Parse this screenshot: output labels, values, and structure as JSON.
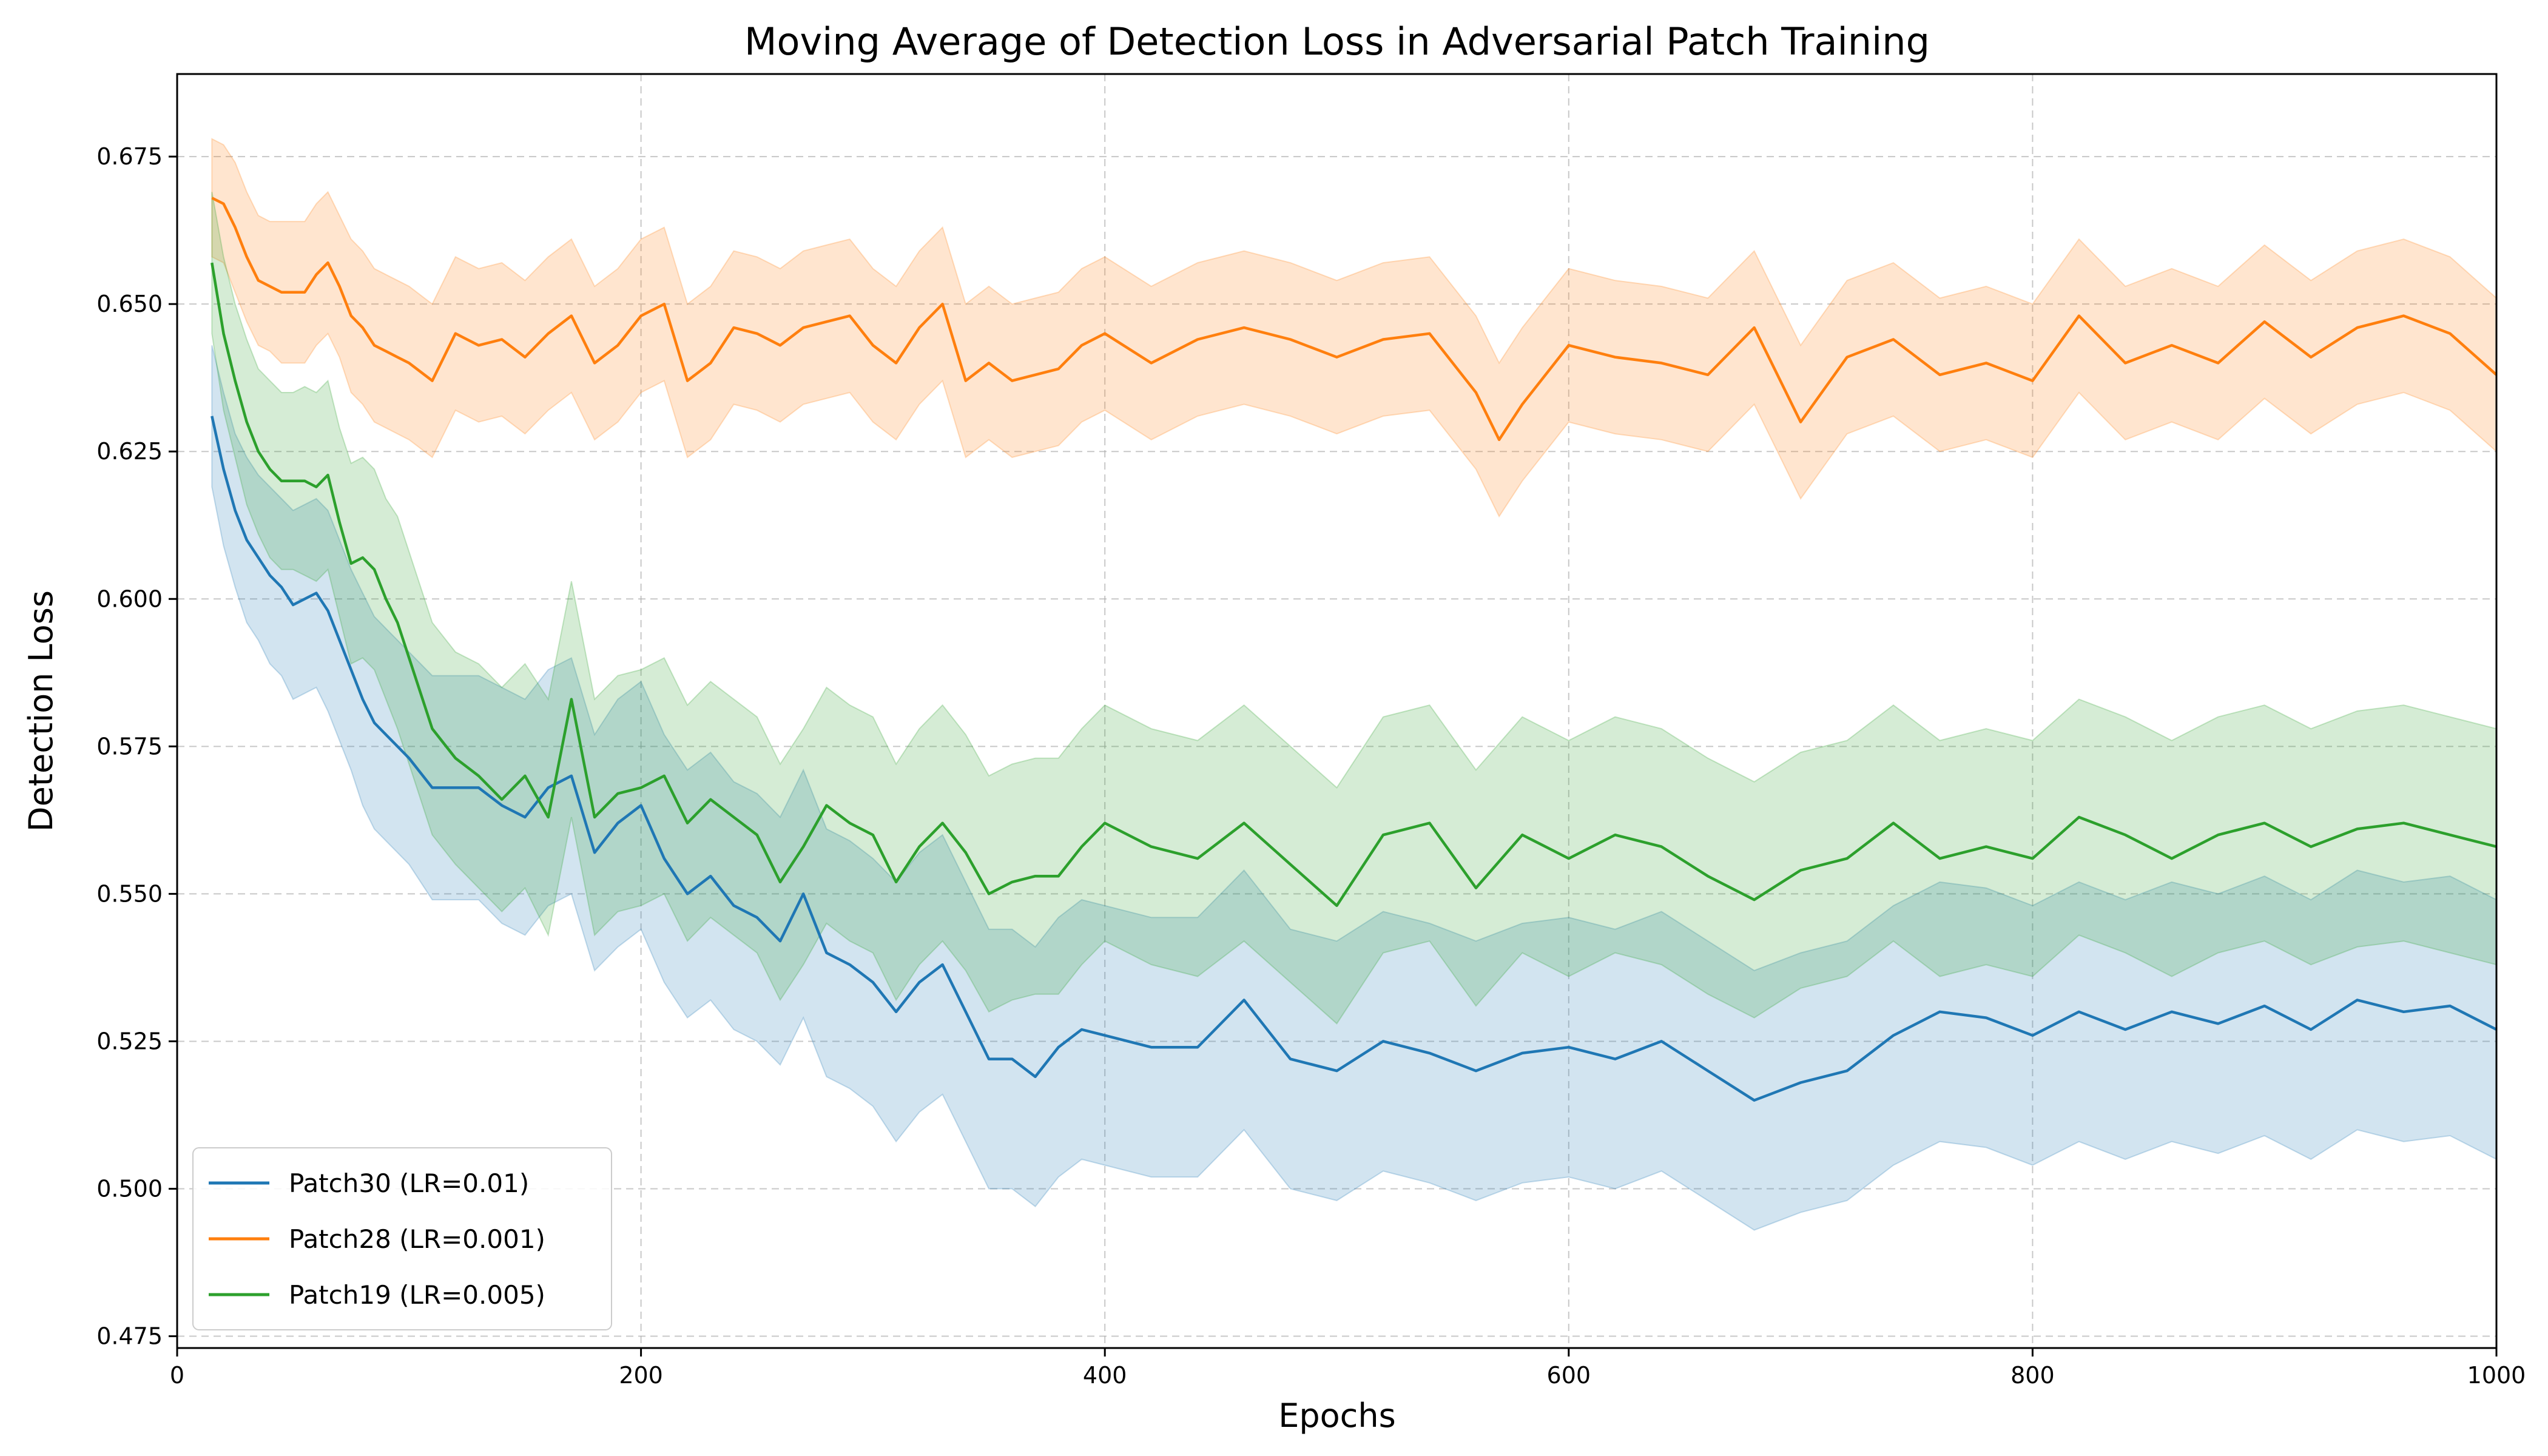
{
  "chart_data": {
    "type": "line",
    "title": "Moving Average of Detection Loss in Adversarial Patch Training",
    "xlabel": "Epochs",
    "ylabel": "Detection Loss",
    "xlim": [
      0,
      1000
    ],
    "ylim": [
      0.473,
      0.689
    ],
    "xticks": [
      0,
      200,
      400,
      600,
      800,
      1000
    ],
    "yticks": [
      0.475,
      0.5,
      0.525,
      0.55,
      0.575,
      0.6,
      0.625,
      0.65,
      0.675
    ],
    "grid": true,
    "legend_position": "lower-left",
    "series": [
      {
        "name": "Patch30 (LR=0.01)",
        "color": "#1f77b4",
        "x": [
          15,
          20,
          25,
          30,
          35,
          40,
          45,
          50,
          55,
          60,
          65,
          70,
          75,
          80,
          85,
          90,
          95,
          100,
          110,
          120,
          130,
          140,
          150,
          160,
          170,
          180,
          190,
          200,
          210,
          220,
          230,
          240,
          250,
          260,
          270,
          280,
          290,
          300,
          310,
          320,
          330,
          340,
          350,
          360,
          370,
          380,
          390,
          400,
          420,
          440,
          460,
          480,
          500,
          520,
          540,
          560,
          580,
          600,
          620,
          640,
          660,
          680,
          700,
          720,
          740,
          760,
          780,
          800,
          820,
          840,
          860,
          880,
          900,
          920,
          940,
          960,
          980,
          1000
        ],
        "values": [
          0.631,
          0.622,
          0.615,
          0.61,
          0.607,
          0.604,
          0.602,
          0.599,
          0.6,
          0.601,
          0.598,
          0.593,
          0.588,
          0.583,
          0.579,
          0.577,
          0.575,
          0.573,
          0.568,
          0.568,
          0.568,
          0.565,
          0.563,
          0.568,
          0.57,
          0.557,
          0.562,
          0.565,
          0.556,
          0.55,
          0.553,
          0.548,
          0.546,
          0.542,
          0.55,
          0.54,
          0.538,
          0.535,
          0.53,
          0.535,
          0.538,
          0.53,
          0.522,
          0.522,
          0.519,
          0.524,
          0.527,
          0.526,
          0.524,
          0.524,
          0.532,
          0.522,
          0.52,
          0.525,
          0.523,
          0.52,
          0.523,
          0.524,
          0.522,
          0.525,
          0.52,
          0.515,
          0.518,
          0.52,
          0.526,
          0.53,
          0.529,
          0.526,
          0.53,
          0.527,
          0.53,
          0.528,
          0.531,
          0.527,
          0.532,
          0.53,
          0.531,
          0.527
        ],
        "band_half_width": [
          0.012,
          0.013,
          0.013,
          0.014,
          0.014,
          0.015,
          0.015,
          0.016,
          0.016,
          0.016,
          0.017,
          0.017,
          0.017,
          0.018,
          0.018,
          0.018,
          0.018,
          0.018,
          0.019,
          0.019,
          0.019,
          0.02,
          0.02,
          0.02,
          0.02,
          0.02,
          0.021,
          0.021,
          0.021,
          0.021,
          0.021,
          0.021,
          0.021,
          0.021,
          0.021,
          0.021,
          0.021,
          0.021,
          0.022,
          0.022,
          0.022,
          0.022,
          0.022,
          0.022,
          0.022,
          0.022,
          0.022,
          0.022,
          0.022,
          0.022,
          0.022,
          0.022,
          0.022,
          0.022,
          0.022,
          0.022,
          0.022,
          0.022,
          0.022,
          0.022,
          0.022,
          0.022,
          0.022,
          0.022,
          0.022,
          0.022,
          0.022,
          0.022,
          0.022,
          0.022,
          0.022,
          0.022,
          0.022,
          0.022,
          0.022,
          0.022,
          0.022,
          0.022
        ]
      },
      {
        "name": "Patch28 (LR=0.001)",
        "color": "#ff7f0e",
        "x": [
          15,
          20,
          25,
          30,
          35,
          40,
          45,
          50,
          55,
          60,
          65,
          70,
          75,
          80,
          85,
          90,
          95,
          100,
          110,
          120,
          130,
          140,
          150,
          160,
          170,
          180,
          190,
          200,
          210,
          220,
          230,
          240,
          250,
          260,
          270,
          280,
          290,
          300,
          310,
          320,
          330,
          340,
          350,
          360,
          370,
          380,
          390,
          400,
          420,
          440,
          460,
          480,
          500,
          520,
          540,
          560,
          570,
          580,
          600,
          620,
          640,
          660,
          680,
          700,
          720,
          740,
          760,
          780,
          800,
          820,
          840,
          860,
          880,
          900,
          920,
          940,
          960,
          980,
          1000
        ],
        "values": [
          0.668,
          0.667,
          0.663,
          0.658,
          0.654,
          0.653,
          0.652,
          0.652,
          0.652,
          0.655,
          0.657,
          0.653,
          0.648,
          0.646,
          0.643,
          0.642,
          0.641,
          0.64,
          0.637,
          0.645,
          0.643,
          0.644,
          0.641,
          0.645,
          0.648,
          0.64,
          0.643,
          0.648,
          0.65,
          0.637,
          0.64,
          0.646,
          0.645,
          0.643,
          0.646,
          0.647,
          0.648,
          0.643,
          0.64,
          0.646,
          0.65,
          0.637,
          0.64,
          0.637,
          0.638,
          0.639,
          0.643,
          0.645,
          0.64,
          0.644,
          0.646,
          0.644,
          0.641,
          0.644,
          0.645,
          0.635,
          0.627,
          0.633,
          0.643,
          0.641,
          0.64,
          0.638,
          0.646,
          0.63,
          0.641,
          0.644,
          0.638,
          0.64,
          0.637,
          0.648,
          0.64,
          0.643,
          0.64,
          0.647,
          0.641,
          0.646,
          0.648,
          0.645,
          0.638
        ],
        "band_half_width": [
          0.01,
          0.01,
          0.011,
          0.011,
          0.011,
          0.011,
          0.012,
          0.012,
          0.012,
          0.012,
          0.012,
          0.012,
          0.013,
          0.013,
          0.013,
          0.013,
          0.013,
          0.013,
          0.013,
          0.013,
          0.013,
          0.013,
          0.013,
          0.013,
          0.013,
          0.013,
          0.013,
          0.013,
          0.013,
          0.013,
          0.013,
          0.013,
          0.013,
          0.013,
          0.013,
          0.013,
          0.013,
          0.013,
          0.013,
          0.013,
          0.013,
          0.013,
          0.013,
          0.013,
          0.013,
          0.013,
          0.013,
          0.013,
          0.013,
          0.013,
          0.013,
          0.013,
          0.013,
          0.013,
          0.013,
          0.013,
          0.013,
          0.013,
          0.013,
          0.013,
          0.013,
          0.013,
          0.013,
          0.013,
          0.013,
          0.013,
          0.013,
          0.013,
          0.013,
          0.013,
          0.013,
          0.013,
          0.013,
          0.013,
          0.013,
          0.013,
          0.013,
          0.013,
          0.013
        ]
      },
      {
        "name": "Patch19 (LR=0.005)",
        "color": "#2ca02c",
        "x": [
          15,
          20,
          25,
          30,
          35,
          40,
          45,
          50,
          55,
          60,
          65,
          70,
          75,
          80,
          85,
          90,
          95,
          100,
          110,
          120,
          130,
          140,
          150,
          160,
          170,
          180,
          190,
          200,
          210,
          220,
          230,
          240,
          250,
          260,
          270,
          280,
          290,
          300,
          310,
          320,
          330,
          340,
          350,
          360,
          370,
          380,
          390,
          400,
          420,
          440,
          460,
          480,
          500,
          520,
          540,
          560,
          580,
          600,
          620,
          640,
          660,
          680,
          700,
          720,
          740,
          760,
          780,
          800,
          820,
          840,
          860,
          880,
          900,
          920,
          940,
          960,
          980,
          1000
        ],
        "values": [
          0.657,
          0.645,
          0.637,
          0.63,
          0.625,
          0.622,
          0.62,
          0.62,
          0.62,
          0.619,
          0.621,
          0.613,
          0.606,
          0.607,
          0.605,
          0.6,
          0.596,
          0.59,
          0.578,
          0.573,
          0.57,
          0.566,
          0.57,
          0.563,
          0.583,
          0.563,
          0.567,
          0.568,
          0.57,
          0.562,
          0.566,
          0.563,
          0.56,
          0.552,
          0.558,
          0.565,
          0.562,
          0.56,
          0.552,
          0.558,
          0.562,
          0.557,
          0.55,
          0.552,
          0.553,
          0.553,
          0.558,
          0.562,
          0.558,
          0.556,
          0.562,
          0.555,
          0.548,
          0.56,
          0.562,
          0.551,
          0.56,
          0.556,
          0.56,
          0.558,
          0.553,
          0.549,
          0.554,
          0.556,
          0.562,
          0.556,
          0.558,
          0.556,
          0.563,
          0.56,
          0.556,
          0.56,
          0.562,
          0.558,
          0.561,
          0.562,
          0.56,
          0.558
        ],
        "band_half_width": [
          0.012,
          0.013,
          0.013,
          0.014,
          0.014,
          0.015,
          0.015,
          0.015,
          0.016,
          0.016,
          0.016,
          0.016,
          0.017,
          0.017,
          0.017,
          0.017,
          0.018,
          0.018,
          0.018,
          0.018,
          0.019,
          0.019,
          0.019,
          0.02,
          0.02,
          0.02,
          0.02,
          0.02,
          0.02,
          0.02,
          0.02,
          0.02,
          0.02,
          0.02,
          0.02,
          0.02,
          0.02,
          0.02,
          0.02,
          0.02,
          0.02,
          0.02,
          0.02,
          0.02,
          0.02,
          0.02,
          0.02,
          0.02,
          0.02,
          0.02,
          0.02,
          0.02,
          0.02,
          0.02,
          0.02,
          0.02,
          0.02,
          0.02,
          0.02,
          0.02,
          0.02,
          0.02,
          0.02,
          0.02,
          0.02,
          0.02,
          0.02,
          0.02,
          0.02,
          0.02,
          0.02,
          0.02,
          0.02,
          0.02,
          0.02,
          0.02,
          0.02,
          0.02
        ]
      }
    ]
  }
}
